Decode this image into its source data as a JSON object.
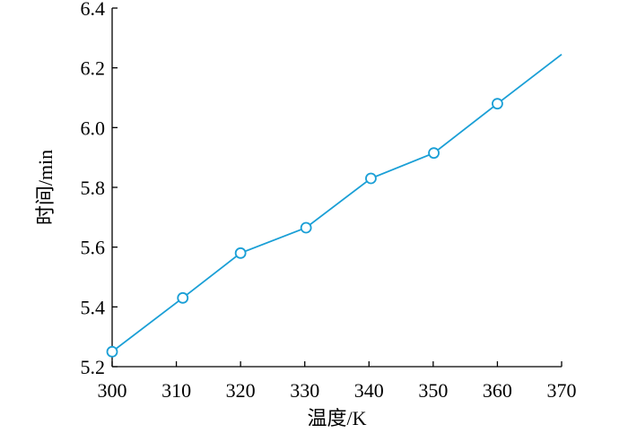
{
  "chart_data": {
    "type": "line",
    "title": "",
    "xlabel": "温度/K",
    "ylabel": "时间/min",
    "xlim": [
      300,
      370
    ],
    "ylim": [
      5.2,
      6.4
    ],
    "xticks": [
      {
        "value": 300,
        "label": "300"
      },
      {
        "value": 310,
        "label": "310"
      },
      {
        "value": 320,
        "label": "320"
      },
      {
        "value": 330,
        "label": "330"
      },
      {
        "value": 340,
        "label": "340"
      },
      {
        "value": 350,
        "label": "350"
      },
      {
        "value": 360,
        "label": "360"
      },
      {
        "value": 370,
        "label": "370"
      }
    ],
    "yticks": [
      {
        "value": 5.2,
        "label": "5.2"
      },
      {
        "value": 5.4,
        "label": "5.4"
      },
      {
        "value": 5.6,
        "label": "5.6"
      },
      {
        "value": 5.8,
        "label": "5.8"
      },
      {
        "value": 6.0,
        "label": "6.0"
      },
      {
        "value": 6.2,
        "label": "6.2"
      },
      {
        "value": 6.4,
        "label": "6.4"
      }
    ],
    "grid": false,
    "color": "#1a9fd6",
    "series": [
      {
        "x": [
          300,
          311,
          320,
          330.2,
          340.3,
          350.1,
          360,
          370
        ],
        "y": [
          5.25,
          5.43,
          5.58,
          5.665,
          5.83,
          5.915,
          6.08,
          6.245
        ],
        "markers": [
          true,
          true,
          true,
          true,
          true,
          true,
          true,
          false
        ]
      }
    ]
  }
}
